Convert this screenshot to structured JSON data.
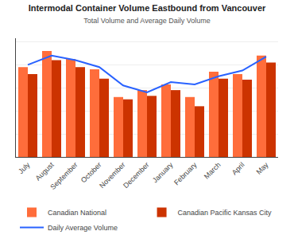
{
  "chart_data": {
    "type": "bar",
    "title": "Intermodal Container Volume Eastbound from Vancouver",
    "subtitle": "Total Volume and Average Daily Volume",
    "categories": [
      "July",
      "August",
      "September",
      "October",
      "November",
      "December",
      "January",
      "February",
      "March",
      "April",
      "May"
    ],
    "series": [
      {
        "name": "Canadian National",
        "type": "bar",
        "color": "#FF6D3B",
        "values": [
          78,
          92,
          85,
          76,
          52,
          58,
          63,
          52,
          74,
          72,
          88
        ]
      },
      {
        "name": "Canadian Pacific Kansas City",
        "type": "bar",
        "color": "#CC3300",
        "values": [
          72,
          84,
          78,
          68,
          50,
          53,
          58,
          44,
          68,
          67,
          82
        ]
      },
      {
        "name": "Daily Average Volume",
        "type": "line",
        "color": "#2962FF",
        "values": [
          80,
          88,
          84,
          78,
          62,
          56,
          65,
          63,
          70,
          75,
          87
        ]
      }
    ],
    "ylim": [
      0,
      103.04
    ],
    "yticks": [
      0,
      20,
      40,
      60,
      80,
      100
    ],
    "grid": true,
    "legend": "bottom",
    "tick_labels": "x"
  }
}
